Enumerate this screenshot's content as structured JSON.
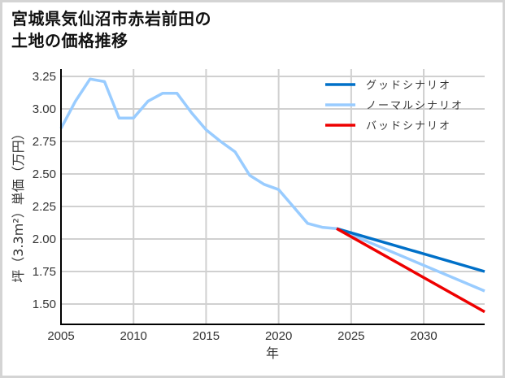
{
  "title": {
    "line1": "宮城県気仙沼市赤岩前田の",
    "line2": "土地の価格推移"
  },
  "colors": {
    "good": "#0070c8",
    "normal": "#99ccff",
    "bad": "#ee0000",
    "grid": "#d0d0d0",
    "axis": "#000000",
    "frame": "#d4d4d4"
  },
  "chart_data": {
    "type": "line",
    "title": "宮城県気仙沼市赤岩前田の土地の価格推移",
    "xlabel": "年",
    "ylabel": "坪（3.3m²）単価（万円）",
    "xlim": [
      2005,
      2034.2
    ],
    "ylim": [
      1.344,
      3.306
    ],
    "x_ticks": [
      2005,
      2010,
      2015,
      2020,
      2025,
      2030
    ],
    "y_ticks": [
      1.5,
      1.75,
      2.0,
      2.25,
      2.5,
      2.75,
      3.0,
      3.25
    ],
    "y_tick_labels": [
      "1.50",
      "1.75",
      "2.00",
      "2.25",
      "2.50",
      "2.75",
      "3.00",
      "3.25"
    ],
    "grid": true,
    "legend_position": "upper right",
    "series": [
      {
        "name": "グッドシナリオ",
        "color": "#0070c8",
        "x": [
          2024,
          2034.2
        ],
        "values": [
          2.08,
          1.75
        ]
      },
      {
        "name": "ノーマルシナリオ",
        "color": "#99ccff",
        "x": [
          2005,
          2006,
          2007,
          2008,
          2009,
          2010,
          2011,
          2012,
          2013,
          2014,
          2015,
          2016,
          2017,
          2018,
          2019,
          2020,
          2021,
          2022,
          2023,
          2024,
          2034.2
        ],
        "values": [
          2.85,
          3.06,
          3.23,
          3.21,
          2.93,
          2.93,
          3.06,
          3.12,
          3.12,
          2.97,
          2.84,
          2.75,
          2.67,
          2.49,
          2.42,
          2.38,
          2.25,
          2.12,
          2.09,
          2.08,
          1.6
        ]
      },
      {
        "name": "バッドシナリオ",
        "color": "#ee0000",
        "x": [
          2024,
          2034.2
        ],
        "values": [
          2.08,
          1.44
        ]
      }
    ]
  }
}
